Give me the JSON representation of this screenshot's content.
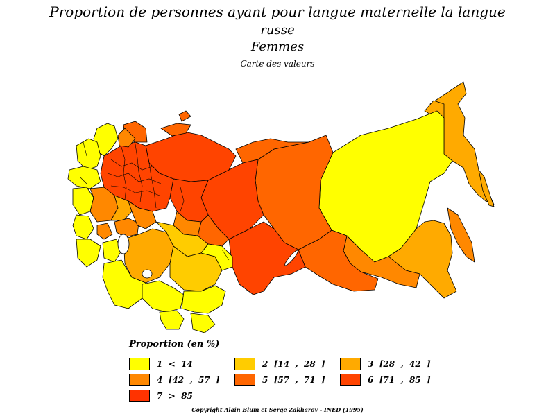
{
  "title": {
    "line1": "Proportion de personnes ayant pour langue maternelle la langue",
    "line2": "russe",
    "subtitle": "Femmes",
    "subtitle2": "Carte des valeurs"
  },
  "legend": {
    "title": "Proportion (en %)",
    "items": [
      {
        "label": "1  <  14",
        "color": "#ffff00"
      },
      {
        "label": "2  [14  ,  28  ]",
        "color": "#ffcc00"
      },
      {
        "label": "3  [28  ,  42  ]",
        "color": "#ffaa00"
      },
      {
        "label": "4  [42  ,  57  ]",
        "color": "#ff8800"
      },
      {
        "label": "5  [57  ,  71  ]",
        "color": "#ff6600"
      },
      {
        "label": "6  [71  ,  85  ]",
        "color": "#ff4400"
      },
      {
        "label": "7  >  85",
        "color": "#ff3300"
      }
    ]
  },
  "copyright": "Copyright Alain Blum et Serge Zakharov  -  INED (1995)"
}
